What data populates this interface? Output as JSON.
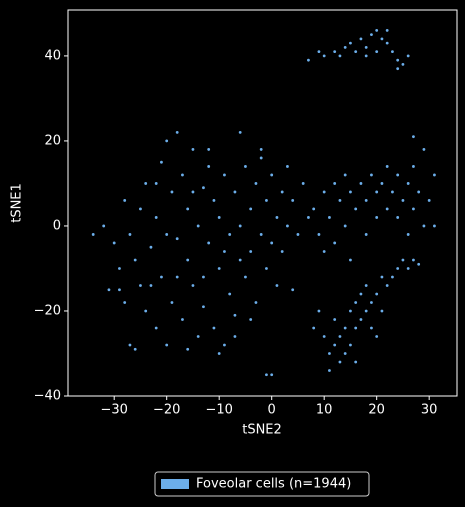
{
  "chart_data": {
    "type": "scatter",
    "xlabel": "tSNE2",
    "ylabel": "tSNE1",
    "xlim": [
      -38.8,
      35.3
    ],
    "ylim": [
      -40,
      50.8
    ],
    "xticks": [
      {
        "value": -30,
        "label": "−30"
      },
      {
        "value": -20,
        "label": "−20"
      },
      {
        "value": -10,
        "label": "−10"
      },
      0,
      10,
      20,
      30
    ],
    "yticks": [
      {
        "value": -40,
        "label": "−40"
      },
      {
        "value": -20,
        "label": "−20"
      },
      0,
      20,
      40
    ],
    "legend": "bottom",
    "series": [
      {
        "name": "Foveolar cells (n=1944)",
        "color": "#6caeea",
        "x": [
          7,
          9,
          10,
          12,
          13,
          14,
          15,
          16,
          17,
          18,
          19,
          20,
          21,
          22,
          23,
          24,
          25,
          26,
          22,
          18,
          24,
          20,
          -34,
          -32,
          -30,
          -29,
          -29,
          -28,
          -27,
          -26,
          -26,
          -25,
          -25,
          -24,
          -24,
          -23,
          -22,
          -22,
          -21,
          -21,
          -20,
          -20,
          -19,
          -19,
          -18,
          -18,
          -17,
          -17,
          -16,
          -16,
          -15,
          -15,
          -14,
          -14,
          -13,
          -13,
          -12,
          -12,
          -11,
          -11,
          -10,
          -10,
          -9,
          -9,
          -8,
          -8,
          -7,
          -7,
          -6,
          -6,
          -5,
          -5,
          -4,
          -4,
          -3,
          -3,
          -2,
          -2,
          -1,
          -1,
          0,
          0,
          1,
          1,
          2,
          2,
          3,
          3,
          4,
          4,
          5,
          6,
          7,
          -23,
          -27,
          -31,
          -20,
          -18,
          -13,
          -16,
          -10,
          -7,
          -12,
          -9,
          -6,
          -15,
          -22,
          -1,
          0,
          -28,
          -2,
          -4,
          8,
          9,
          10,
          10,
          11,
          12,
          12,
          13,
          14,
          14,
          15,
          15,
          16,
          17,
          18,
          18,
          19,
          20,
          20,
          21,
          22,
          22,
          23,
          24,
          24,
          25,
          26,
          26,
          27,
          27,
          28,
          29,
          29,
          30,
          31,
          31,
          27,
          8,
          9,
          10,
          11,
          11,
          12,
          12,
          13,
          13,
          14,
          14,
          15,
          15,
          16,
          16,
          17,
          17,
          18,
          18,
          19,
          19,
          20,
          21,
          21,
          22,
          23,
          24,
          25,
          26,
          27,
          28,
          20,
          16
        ],
        "values": [
          39,
          41,
          40,
          41,
          40,
          42,
          43,
          41,
          44,
          42,
          45,
          46,
          44,
          43,
          41,
          39,
          38,
          40,
          46,
          40,
          37,
          41,
          -2,
          0,
          -4,
          -10,
          -15,
          -18,
          -28,
          -29,
          -8,
          -14,
          4,
          -20,
          10,
          -5,
          -24,
          2,
          15,
          -12,
          20,
          -28,
          8,
          -18,
          22,
          -3,
          12,
          -22,
          4,
          -8,
          18,
          -14,
          0,
          -26,
          9,
          -19,
          14,
          -4,
          -24,
          6,
          -10,
          2,
          -28,
          12,
          -16,
          -2,
          8,
          -21,
          22,
          0,
          -12,
          14,
          -6,
          4,
          10,
          -18,
          -2,
          16,
          6,
          -10,
          -4,
          12,
          2,
          -14,
          8,
          -6,
          14,
          0,
          -15,
          6,
          -2,
          10,
          2,
          -14,
          -2,
          -15,
          -2,
          -12,
          -12,
          -29,
          -30,
          -26,
          18,
          -6,
          -8,
          8,
          10,
          -35,
          -35,
          6,
          18,
          -22,
          4,
          -2,
          8,
          -6,
          2,
          10,
          -4,
          6,
          0,
          12,
          8,
          -8,
          4,
          10,
          6,
          -2,
          12,
          8,
          2,
          10,
          4,
          14,
          8,
          12,
          2,
          6,
          10,
          -2,
          14,
          4,
          8,
          18,
          0,
          6,
          0,
          12,
          21,
          -24,
          -20,
          -26,
          -30,
          -34,
          -28,
          -22,
          -32,
          -26,
          -30,
          -24,
          -20,
          -28,
          -18,
          -24,
          -22,
          -16,
          -20,
          -14,
          -18,
          -24,
          -16,
          -12,
          -20,
          -14,
          -12,
          -10,
          -8,
          -10,
          -8,
          -9,
          -26,
          -32
        ]
      }
    ]
  }
}
